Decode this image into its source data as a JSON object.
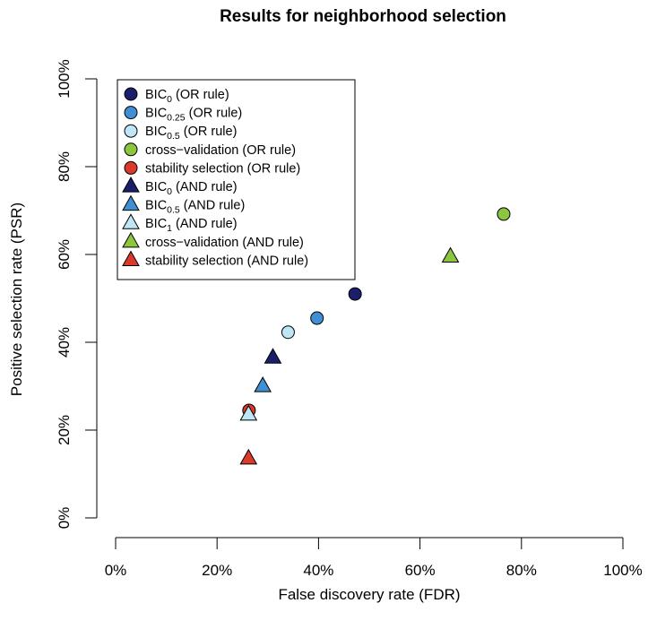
{
  "chart_data": {
    "type": "scatter",
    "title": "Results for neighborhood selection",
    "xlabel": "False discovery rate (FDR)",
    "ylabel": "Positive selection rate (PSR)",
    "xlim": [
      0,
      100
    ],
    "ylim": [
      0,
      100
    ],
    "xticks": [
      "0%",
      "20%",
      "40%",
      "60%",
      "80%",
      "100%"
    ],
    "yticks": [
      "0%",
      "20%",
      "40%",
      "60%",
      "80%",
      "100%"
    ],
    "grid": false,
    "legend_position": "top-left",
    "series": [
      {
        "name": "BIC",
        "sub": "0",
        "suffix": " (OR rule)",
        "marker": "circle",
        "color": "#1b1f6b",
        "x": 47.2,
        "y": 51.0
      },
      {
        "name": "BIC",
        "sub": "0.25",
        "suffix": " (OR rule)",
        "marker": "circle",
        "color": "#3f8fd2",
        "x": 39.7,
        "y": 45.5
      },
      {
        "name": "BIC",
        "sub": "0.5",
        "suffix": " (OR rule)",
        "marker": "circle",
        "color": "#bfe6f6",
        "x": 34.0,
        "y": 42.3
      },
      {
        "name": "cross−validation (OR rule)",
        "sub": "",
        "suffix": "",
        "marker": "circle",
        "color": "#8cc63e",
        "x": 76.5,
        "y": 69.2
      },
      {
        "name": "stability selection (OR rule)",
        "sub": "",
        "suffix": "",
        "marker": "circle",
        "color": "#d93a2b",
        "x": 26.3,
        "y": 24.5
      },
      {
        "name": "BIC",
        "sub": "0",
        "suffix": " (AND rule)",
        "marker": "triangle",
        "color": "#1b1f6b",
        "x": 31.0,
        "y": 36.5
      },
      {
        "name": "BIC",
        "sub": "0.5",
        "suffix": " (AND rule)",
        "marker": "triangle",
        "color": "#3f8fd2",
        "x": 29.0,
        "y": 30.0
      },
      {
        "name": "BIC",
        "sub": "1",
        "suffix": " (AND rule)",
        "marker": "triangle",
        "color": "#bfe6f6",
        "x": 26.2,
        "y": 23.5
      },
      {
        "name": "cross−validation (AND rule)",
        "sub": "",
        "suffix": "",
        "marker": "triangle",
        "color": "#8cc63e",
        "x": 66.0,
        "y": 59.5
      },
      {
        "name": "stability selection (AND rule)",
        "sub": "",
        "suffix": "",
        "marker": "triangle",
        "color": "#d93a2b",
        "x": 26.2,
        "y": 13.5
      }
    ]
  }
}
